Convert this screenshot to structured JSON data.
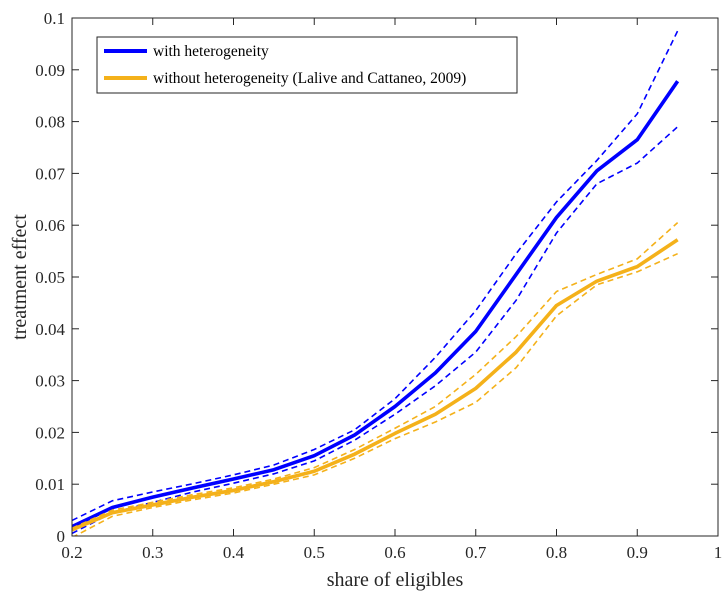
{
  "chart_data": {
    "type": "line",
    "xlabel": "share of eligibles",
    "ylabel": "treatment effect",
    "xlim": [
      0.2,
      1
    ],
    "ylim": [
      0,
      0.1
    ],
    "x_ticks": [
      "0.2",
      "0.3",
      "0.4",
      "0.5",
      "0.6",
      "0.7",
      "0.8",
      "0.9",
      "1"
    ],
    "y_ticks": [
      "0",
      "0.01",
      "0.02",
      "0.03",
      "0.04",
      "0.05",
      "0.06",
      "0.07",
      "0.08",
      "0.09",
      "0.1"
    ],
    "grid": false,
    "legend_position": "top-left",
    "x": [
      0.2,
      0.25,
      0.3,
      0.35,
      0.4,
      0.45,
      0.5,
      0.55,
      0.6,
      0.65,
      0.7,
      0.75,
      0.8,
      0.85,
      0.9,
      0.95
    ],
    "series": [
      {
        "name": "with heterogeneity",
        "color": "#0000FF",
        "values": [
          0.0018,
          0.0055,
          0.0075,
          0.0093,
          0.011,
          0.0128,
          0.0155,
          0.0195,
          0.025,
          0.0315,
          0.0395,
          0.0505,
          0.0615,
          0.0705,
          0.0765,
          0.0878
        ],
        "ci_lower": [
          0.0005,
          0.0045,
          0.0065,
          0.0085,
          0.0102,
          0.012,
          0.0145,
          0.0185,
          0.0235,
          0.029,
          0.0355,
          0.0455,
          0.0585,
          0.068,
          0.072,
          0.079
        ],
        "ci_upper": [
          0.003,
          0.0068,
          0.0085,
          0.0101,
          0.0118,
          0.0137,
          0.0167,
          0.0205,
          0.0265,
          0.0345,
          0.0435,
          0.0545,
          0.0645,
          0.0725,
          0.0815,
          0.0975
        ]
      },
      {
        "name": "without heterogeneity (Lalive and Cattaneo, 2009)",
        "color": "#F4B11A",
        "values": [
          0.0012,
          0.0045,
          0.006,
          0.0075,
          0.0088,
          0.0105,
          0.0125,
          0.0158,
          0.0198,
          0.0235,
          0.0285,
          0.0355,
          0.0445,
          0.0492,
          0.052,
          0.0572
        ],
        "ci_lower": [
          -0.0003,
          0.0038,
          0.0055,
          0.007,
          0.0083,
          0.01,
          0.0118,
          0.015,
          0.0188,
          0.022,
          0.0258,
          0.0325,
          0.0425,
          0.0485,
          0.051,
          0.0545
        ],
        "ci_upper": [
          0.0015,
          0.005,
          0.0065,
          0.008,
          0.0093,
          0.011,
          0.0132,
          0.0167,
          0.0208,
          0.025,
          0.0312,
          0.0385,
          0.0472,
          0.0505,
          0.0535,
          0.0605
        ]
      }
    ]
  }
}
